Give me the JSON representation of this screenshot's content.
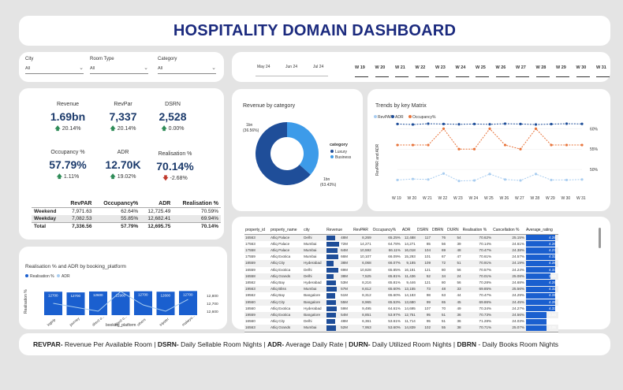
{
  "title": "HOSPITALITY DOMAIN DASHBOARD",
  "filters": [
    {
      "label": "City",
      "value": "All"
    },
    {
      "label": "Room Type",
      "value": "All"
    },
    {
      "label": "Category",
      "value": "All"
    }
  ],
  "months": [
    "May 24",
    "Jun 24",
    "Jul 24"
  ],
  "weeks": [
    "W 19",
    "W 20",
    "W 21",
    "W 22",
    "W 23",
    "W 24",
    "W 25",
    "W 26",
    "W 27",
    "W 28",
    "W 29",
    "W 30",
    "W 31"
  ],
  "kpis": [
    {
      "label": "Revenue",
      "value": "1.69bn",
      "change": "20.14%",
      "dir": "up"
    },
    {
      "label": "RevPar",
      "value": "7,337",
      "change": "20.14%",
      "dir": "up"
    },
    {
      "label": "DSRN",
      "value": "2,528",
      "change": "0.00%",
      "dir": "up"
    },
    {
      "label": "Occupancy %",
      "value": "57.79%",
      "change": "1.11%",
      "dir": "up"
    },
    {
      "label": "ADR",
      "value": "12.70K",
      "change": "19.02%",
      "dir": "up"
    },
    {
      "label": "Realisation %",
      "value": "70.14%",
      "change": "-2.68%",
      "dir": "down"
    }
  ],
  "kpi_table": {
    "headers": [
      "",
      "RevPAR",
      "Occupancy%",
      "ADR",
      "Realisation %"
    ],
    "rows": [
      [
        "Weekend",
        "7,971.63",
        "62.64%",
        "12,725.49",
        "70.59%"
      ],
      [
        "Weekday",
        "7,082.53",
        "55.85%",
        "12,682.41",
        "69.94%"
      ],
      [
        "Total",
        "7,336.56",
        "57.79%",
        "12,695.75",
        "70.14%"
      ]
    ]
  },
  "donut": {
    "title": "Revenue by category",
    "legend_title": "category",
    "luxury_label": "1bn\n(63.43%)",
    "business_label": "1bn\n(36.56%)",
    "colors": {
      "luxury": "#1f4e99",
      "business": "#3d9be9"
    }
  },
  "trend": {
    "title": "Trends by key Matrix",
    "ylabel": "RevPAR and ADR"
  },
  "bar_chart": {
    "title": "Realisation % and ADR by booking_platform",
    "xlabel": "booking_platform",
    "ylabel": "Realisation %"
  },
  "chart_data": [
    {
      "type": "pie",
      "title": "Revenue by category",
      "categories": [
        "Luxury",
        "Business"
      ],
      "values": [
        63.43,
        36.56
      ],
      "legend": "right"
    },
    {
      "type": "line",
      "title": "Trends by key Matrix",
      "categories": [
        "W 19",
        "W 20",
        "W 21",
        "W 22",
        "W 23",
        "W 24",
        "W 25",
        "W 26",
        "W 27",
        "W 28",
        "W 29",
        "W 30",
        "W 31"
      ],
      "series": [
        {
          "name": "RevPAR",
          "axis": "left",
          "color": "#a9cdf0",
          "values": [
            7000,
            7100,
            7050,
            7650,
            6900,
            6950,
            7600,
            7050,
            6950,
            7600,
            7000,
            7000,
            7050
          ]
        },
        {
          "name": "ADR",
          "axis": "left",
          "color": "#1f4e99",
          "values": [
            12650,
            12600,
            12680,
            12650,
            12620,
            12650,
            12620,
            12680,
            12650,
            12600,
            12640,
            12680,
            12660
          ]
        },
        {
          "name": "Occupancy%",
          "axis": "right",
          "color": "#e8743b",
          "values": [
            56,
            56,
            56,
            60,
            55,
            55,
            60,
            56,
            55,
            60,
            56,
            56,
            56
          ]
        }
      ],
      "y2_ticks": [
        "60%",
        "55%",
        "50%"
      ],
      "legend": "top-left"
    },
    {
      "type": "bar",
      "title": "Realisation % and ADR by booking_platform",
      "categories": [
        "logtrip",
        "journey",
        "direct o...",
        "direct o...",
        "others",
        "tripster",
        "makeyo..."
      ],
      "series": [
        {
          "name": "Realisation %",
          "color": "#1a5fcf",
          "values": [
            70.2,
            69.9,
            70.3,
            70.2,
            70.4,
            70.2,
            70.5
          ]
        },
        {
          "name": "ADR",
          "color": "#a9cdf0",
          "values": [
            12700,
            12650,
            12600,
            12850,
            12680,
            12600,
            12750
          ]
        }
      ],
      "bar_labels": [
        "12700",
        "12700",
        "12600",
        "12900",
        "12700",
        "12600",
        "12700"
      ],
      "y2_ticks": [
        "12,800",
        "12,700",
        "12,600"
      ],
      "legend": "top-left"
    }
  ],
  "property_table": {
    "headers": [
      "property_id",
      "property_name",
      "city",
      "Revenue",
      "RevPAR",
      "Occupancy%",
      "ADR",
      "DSRN",
      "DBRN",
      "DURN",
      "Realisation %",
      "Cancellation %",
      "Average_rating"
    ],
    "rows": [
      [
        "16563",
        "Atliq Palace",
        "Delhi",
        "48M",
        "8,269",
        "65.25%",
        "12,488",
        "117",
        "76",
        "54",
        "70.62%",
        "25.15%",
        "4.28"
      ],
      [
        "17563",
        "Atliq Palace",
        "Mumbai",
        "72M",
        "14,271",
        "64.78%",
        "14,271",
        "85",
        "56",
        "39",
        "70.14%",
        "24.61%",
        "4.26"
      ],
      [
        "17558",
        "Atliq Palace",
        "Mumbai",
        "64M",
        "10,592",
        "66.11%",
        "16,018",
        "104",
        "69",
        "48",
        "70.47%",
        "24.38%",
        "4.27"
      ],
      [
        "17559",
        "Atliq Exotica",
        "Mumbai",
        "66M",
        "10,107",
        "66.09%",
        "15,293",
        "101",
        "67",
        "47",
        "70.61%",
        "24.57%",
        "4.32"
      ],
      [
        "18559",
        "Atliq City",
        "Hyderabad",
        "38M",
        "6,068",
        "66.07%",
        "9,185",
        "109",
        "72",
        "51",
        "70.91%",
        "24.19%",
        "4.28"
      ],
      [
        "16559",
        "Atliq Exotica",
        "Delhi",
        "69M",
        "10,828",
        "65.85%",
        "16,181",
        "121",
        "80",
        "56",
        "70.57%",
        "24.24%",
        "4.33"
      ],
      [
        "16558",
        "Atliq Grands",
        "Delhi",
        "38M",
        "7,525",
        "65.81%",
        "11,436",
        "52",
        "34",
        "24",
        "70.01%",
        "25.08%",
        "3.58"
      ],
      [
        "18562",
        "Atliq Bay",
        "Hyderabad",
        "53M",
        "8,216",
        "65.81%",
        "9,446",
        "121",
        "80",
        "56",
        "70.28%",
        "24.68%",
        "4.25"
      ],
      [
        "19563",
        "Atliq Bliss",
        "Mumbai",
        "57M",
        "8,612",
        "65.60%",
        "13,155",
        "73",
        "48",
        "33",
        "69.85%",
        "25.56%",
        "4.32"
      ],
      [
        "19562",
        "Atliq Bay",
        "Bangalore",
        "51M",
        "8,312",
        "65.60%",
        "14,183",
        "98",
        "63",
        "44",
        "70.47%",
        "24.29%",
        "4.31"
      ],
      [
        "19560",
        "Atliq City",
        "Bangalore",
        "55M",
        "8,965",
        "65.53%",
        "13,680",
        "99",
        "65",
        "45",
        "69.86%",
        "24.45%",
        "4.25"
      ],
      [
        "18560",
        "Atliq Exotica",
        "Hyderabad",
        "59M",
        "9,495",
        "64.61%",
        "14,695",
        "107",
        "70",
        "49",
        "70.34%",
        "24.27%",
        "4.33"
      ],
      [
        "19559",
        "Atliq Exotica",
        "Bangalore",
        "54M",
        "8,851",
        "53.97%",
        "12,751",
        "95",
        "51",
        "36",
        "70.73%",
        "24.56%",
        "3.04"
      ],
      [
        "16560",
        "Atliq City",
        "Delhi",
        "48M",
        "6,361",
        "53.61%",
        "11,714",
        "95",
        "51",
        "36",
        "71.28%",
        "24.03%",
        "3.01"
      ],
      [
        "16563",
        "Atliq Grands",
        "Mumbai",
        "52M",
        "7,953",
        "53.60%",
        "14,839",
        "102",
        "55",
        "38",
        "70.71%",
        "25.07%",
        "3.05"
      ]
    ],
    "total": [
      "Total",
      "",
      "",
      "1688M",
      "7,337",
      "57.79%",
      "12,696",
      "2,528",
      "1,461",
      "1,025",
      "70.14%",
      "24.84%",
      "3.62"
    ]
  },
  "footer": [
    {
      "term": "REVPAR-",
      "def": " Revenue Per Available Room | "
    },
    {
      "term": "DSRN-",
      "def": " Daily Sellable Room Nights | "
    },
    {
      "term": "ADR-",
      "def": " Average Daily Rate | "
    },
    {
      "term": "DURN-",
      "def": " Daily Utilized Room Nights | "
    },
    {
      "term": "DBRN",
      "def": " - Daily Books Room Nights"
    }
  ]
}
